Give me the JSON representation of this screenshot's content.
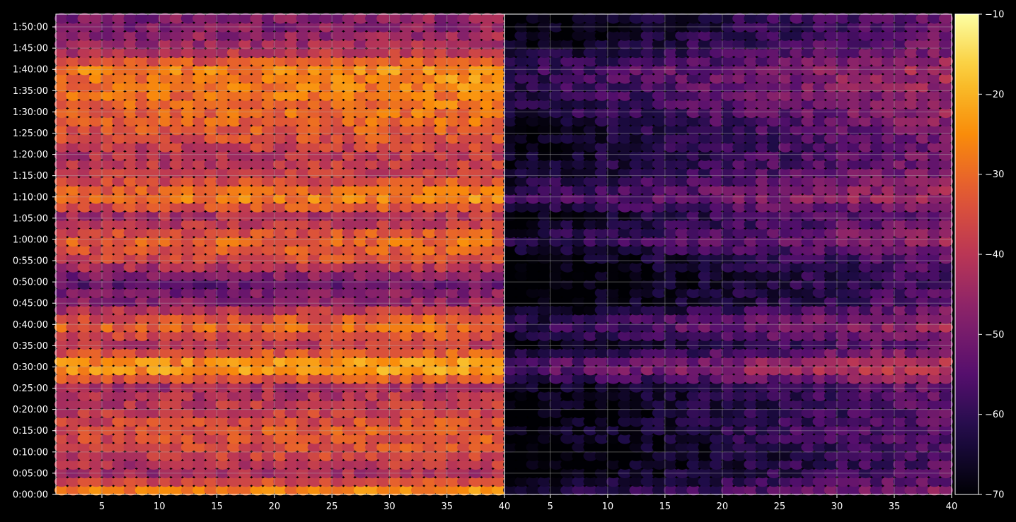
{
  "chart_data": {
    "type": "heatmap",
    "title": "",
    "xlabel": "",
    "ylabel": "",
    "panels": [
      {
        "name": "left",
        "xlim": [
          1,
          40
        ],
        "x_ticks": [
          "5",
          "10",
          "15",
          "20",
          "25",
          "30",
          "35",
          "40"
        ]
      },
      {
        "name": "right",
        "xlim": [
          1,
          40
        ],
        "x_ticks": [
          "5",
          "10",
          "15",
          "20",
          "25",
          "30",
          "35",
          "40"
        ]
      }
    ],
    "y_range_seconds": [
      0,
      6780
    ],
    "y_ticks": [
      "0:00:00",
      "0:05:00",
      "0:10:00",
      "0:15:00",
      "0:20:00",
      "0:25:00",
      "0:30:00",
      "0:35:00",
      "0:40:00",
      "0:45:00",
      "0:50:00",
      "0:55:00",
      "1:00:00",
      "1:05:00",
      "1:10:00",
      "1:15:00",
      "1:20:00",
      "1:25:00",
      "1:30:00",
      "1:35:00",
      "1:40:00",
      "1:45:00",
      "1:50:00"
    ],
    "colorbar": {
      "min": -70,
      "max": -10,
      "ticks": [
        "−70",
        "−60",
        "−50",
        "−40",
        "−30",
        "−20",
        "−10"
      ],
      "colormap": "inferno"
    },
    "grid": true,
    "band_profile_minutes": {
      "note": "approximate per-time-band intensity (dB) read from figure",
      "left_panel_levels": [
        [
          0,
          -25
        ],
        [
          5,
          -45
        ],
        [
          10,
          -38
        ],
        [
          15,
          -35
        ],
        [
          20,
          -40
        ],
        [
          25,
          -45
        ],
        [
          30,
          -22
        ],
        [
          35,
          -42
        ],
        [
          40,
          -30
        ],
        [
          45,
          -48
        ],
        [
          50,
          -55
        ],
        [
          55,
          -38
        ],
        [
          60,
          -32
        ],
        [
          65,
          -45
        ],
        [
          70,
          -28
        ],
        [
          75,
          -40
        ],
        [
          80,
          -42
        ],
        [
          85,
          -35
        ],
        [
          90,
          -32
        ],
        [
          95,
          -30
        ],
        [
          100,
          -28
        ],
        [
          105,
          -45
        ],
        [
          110,
          -50
        ]
      ],
      "right_panel_levels": [
        [
          0,
          -60
        ],
        [
          5,
          -68
        ],
        [
          10,
          -70
        ],
        [
          15,
          -66
        ],
        [
          20,
          -68
        ],
        [
          25,
          -66
        ],
        [
          30,
          -50
        ],
        [
          35,
          -66
        ],
        [
          40,
          -56
        ],
        [
          45,
          -68
        ],
        [
          50,
          -70
        ],
        [
          55,
          -68
        ],
        [
          60,
          -58
        ],
        [
          65,
          -66
        ],
        [
          70,
          -55
        ],
        [
          75,
          -62
        ],
        [
          80,
          -64
        ],
        [
          85,
          -64
        ],
        [
          90,
          -60
        ],
        [
          95,
          -58
        ],
        [
          100,
          -56
        ],
        [
          105,
          -64
        ],
        [
          110,
          -66
        ]
      ]
    }
  }
}
